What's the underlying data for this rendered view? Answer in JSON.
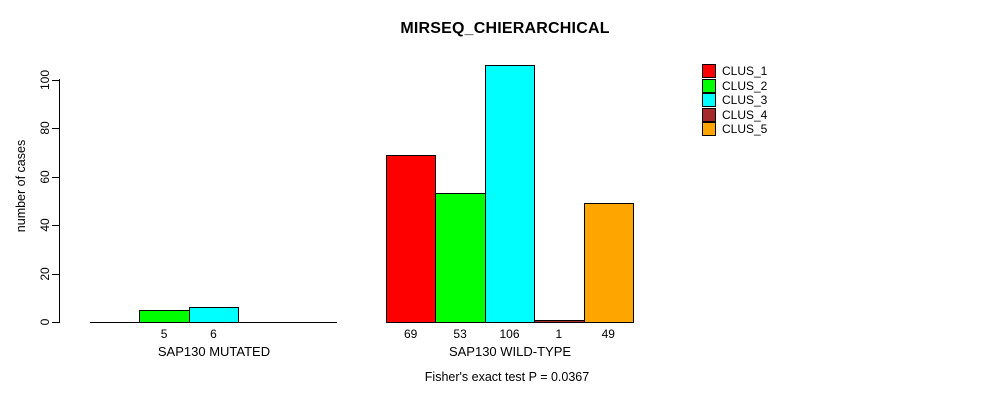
{
  "figure": {
    "background": "#ffffff",
    "axis_color": "#000000",
    "text_color": "#000000"
  },
  "chart_data": {
    "type": "bar",
    "title": "MIRSEQ_CHIERARCHICAL",
    "subtitle": "Fisher's exact test P = 0.0367",
    "ylabel": "number of cases",
    "xlabel": "",
    "ylim": [
      0,
      106
    ],
    "yticks": [
      0,
      20,
      40,
      60,
      80,
      100
    ],
    "grid": false,
    "legend_position": "top-right",
    "categories": [
      "SAP130 MUTATED",
      "SAP130 WILD-TYPE"
    ],
    "series": [
      {
        "name": "CLUS_1",
        "color": "#ff0000",
        "values": [
          0,
          69
        ]
      },
      {
        "name": "CLUS_2",
        "color": "#00ff00",
        "values": [
          5,
          53
        ]
      },
      {
        "name": "CLUS_3",
        "color": "#00ffff",
        "values": [
          6,
          106
        ]
      },
      {
        "name": "CLUS_4",
        "color": "#a52a2a",
        "values": [
          0,
          1
        ]
      },
      {
        "name": "CLUS_5",
        "color": "#ffa500",
        "values": [
          0,
          49
        ]
      }
    ],
    "bar_value_labels": [
      [
        "",
        "5",
        "6",
        "",
        ""
      ],
      [
        "69",
        "53",
        "106",
        "1",
        "49"
      ]
    ]
  }
}
